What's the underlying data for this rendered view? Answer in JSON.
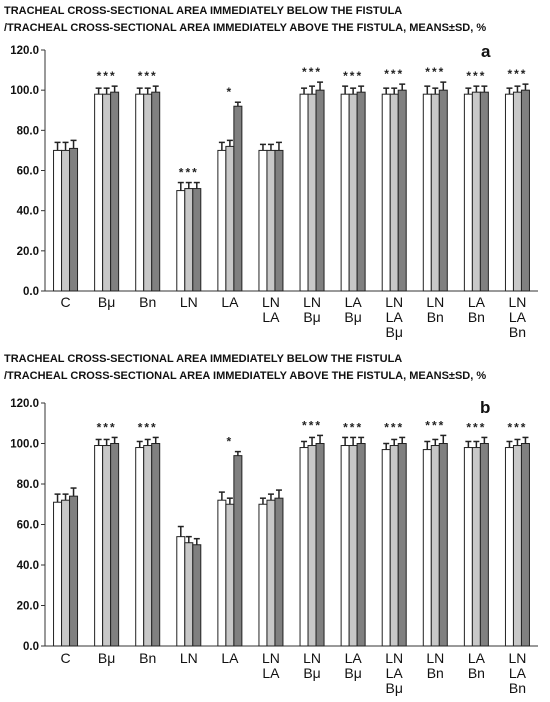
{
  "chart_data": [
    {
      "type": "bar",
      "panel_label": "a",
      "title_line1": "TRACHEAL CROSS-SECTIONAL AREA IMMEDIATELY BELOW THE FISTULA",
      "title_line2": "/TRACHEAL CROSS-SECTIONAL AREA IMMEDIATELY ABOVE THE FISTULA, MEANS±SD, %",
      "ylim": [
        0,
        120
      ],
      "yticks": [
        "0.0",
        "20.0",
        "40.0",
        "60.0",
        "80.0",
        "100.0",
        "120.0"
      ],
      "categories": [
        [
          "C"
        ],
        [
          "Bμ"
        ],
        [
          "Bn"
        ],
        [
          "LN"
        ],
        [
          "LA"
        ],
        [
          "LN",
          "LA"
        ],
        [
          "LN",
          "Bμ"
        ],
        [
          "LA",
          "Bμ"
        ],
        [
          "LN",
          "LA",
          "Bμ"
        ],
        [
          "LN",
          "Bn"
        ],
        [
          "LA",
          "Bn"
        ],
        [
          "LN",
          "LA",
          "Bn"
        ]
      ],
      "annotations": [
        "",
        "***",
        "***",
        "***",
        "*",
        "",
        "***",
        "***",
        "***",
        "***",
        "***",
        "***"
      ],
      "series": [
        {
          "color": "#ffffff",
          "values": [
            70,
            98,
            98,
            50,
            70,
            70,
            98,
            98,
            98,
            98,
            98,
            98
          ],
          "errors": [
            4,
            3,
            3,
            4,
            4,
            3,
            3,
            4,
            3,
            4,
            3,
            3
          ]
        },
        {
          "color": "#c8c8c8",
          "values": [
            70,
            98,
            98,
            51,
            72,
            70,
            98,
            98,
            98,
            98,
            99,
            99
          ],
          "errors": [
            4,
            3,
            3,
            3,
            3,
            3,
            4,
            3,
            3,
            3,
            3,
            3
          ]
        },
        {
          "color": "#808080",
          "values": [
            71,
            99,
            99,
            51,
            92,
            70,
            100,
            99,
            100,
            100,
            99,
            100
          ],
          "errors": [
            4,
            3,
            3,
            3,
            2,
            4,
            4,
            3,
            3,
            4,
            3,
            3
          ]
        }
      ]
    },
    {
      "type": "bar",
      "panel_label": "b",
      "title_line1": "TRACHEAL CROSS-SECTIONAL AREA IMMEDIATELY BELOW THE FISTULA",
      "title_line2": "/TRACHEAL CROSS-SECTIONAL AREA IMMEDIATELY ABOVE THE FISTULA, MEANS±SD, %",
      "ylim": [
        0,
        120
      ],
      "yticks": [
        "0.0",
        "20.0",
        "40.0",
        "60.0",
        "80.0",
        "100.0",
        "120.0"
      ],
      "categories": [
        [
          "C"
        ],
        [
          "Bμ"
        ],
        [
          "Bn"
        ],
        [
          "LN"
        ],
        [
          "LA"
        ],
        [
          "LN",
          "LA"
        ],
        [
          "LN",
          "Bμ"
        ],
        [
          "LA",
          "Bμ"
        ],
        [
          "LN",
          "LA",
          "Bμ"
        ],
        [
          "LN",
          "Bn"
        ],
        [
          "LA",
          "Bn"
        ],
        [
          "LN",
          "LA",
          "Bn"
        ]
      ],
      "annotations": [
        "",
        "***",
        "***",
        "",
        "*",
        "",
        "***",
        "***",
        "***",
        "***",
        "***",
        "***"
      ],
      "series": [
        {
          "color": "#ffffff",
          "values": [
            71,
            99,
            98,
            54,
            72,
            70,
            98,
            99,
            97,
            97,
            98,
            98
          ],
          "errors": [
            4,
            3,
            3,
            5,
            4,
            3,
            3,
            4,
            3,
            4,
            3,
            3
          ]
        },
        {
          "color": "#c8c8c8",
          "values": [
            72,
            99,
            99,
            51,
            70,
            72,
            99,
            99,
            99,
            99,
            98,
            99
          ],
          "errors": [
            3,
            3,
            3,
            3,
            3,
            3,
            4,
            4,
            3,
            3,
            3,
            3
          ]
        },
        {
          "color": "#808080",
          "values": [
            74,
            100,
            100,
            50,
            94,
            73,
            100,
            100,
            100,
            100,
            100,
            100
          ],
          "errors": [
            4,
            3,
            3,
            3,
            2,
            4,
            4,
            3,
            3,
            4,
            3,
            3
          ]
        }
      ]
    }
  ]
}
